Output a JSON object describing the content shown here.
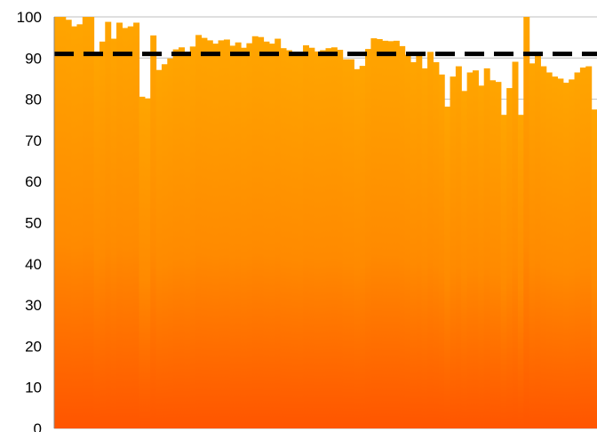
{
  "chart_data": {
    "type": "bar",
    "title": "",
    "xlabel": "",
    "ylabel": "",
    "ylim": [
      0,
      100
    ],
    "yticks": [
      "0",
      "10",
      "20",
      "30",
      "40",
      "50",
      "60",
      "70",
      "80",
      "90",
      "100"
    ],
    "grid": "horizontal",
    "legend": "none",
    "bar_color_top": "#FFA500",
    "bar_color_bottom": "#FF5500",
    "reference_line": {
      "value": 91,
      "style": "dashed",
      "color": "#000000"
    },
    "series": [
      {
        "values": [
          100,
          100,
          99.3,
          97.7,
          98.2,
          100,
          100,
          91.2,
          94,
          98.8,
          94.7,
          98.6,
          97.3,
          97.7,
          98.6,
          80.6,
          80.2,
          95.5,
          87.1,
          88.5,
          89.9,
          92.1,
          92.6,
          91.4,
          92.8,
          95.6,
          94.9,
          94.3,
          93.5,
          94.3,
          94.5,
          93,
          93.8,
          92.5,
          93.6,
          95.3,
          95.1,
          94,
          93.5,
          94.7,
          92.4,
          91.9,
          91.2,
          90.7,
          93.1,
          92.5,
          91.6,
          91.9,
          92.4,
          92.6,
          92,
          89.7,
          89.7,
          87.3,
          88.1,
          92.2,
          94.8,
          94.6,
          94.2,
          94.1,
          94.2,
          92.9,
          90.8,
          89,
          90.5,
          87.5,
          91.5,
          89,
          86,
          78.2,
          85.5,
          88,
          82,
          86.5,
          87,
          83.3,
          87.5,
          84.6,
          84.2,
          76.2,
          82.7,
          89.1,
          76.2,
          100,
          88.7,
          91.1,
          88,
          86.5,
          85.5,
          85,
          84,
          84.8,
          86.5,
          87.7,
          88,
          77.5
        ]
      }
    ]
  }
}
